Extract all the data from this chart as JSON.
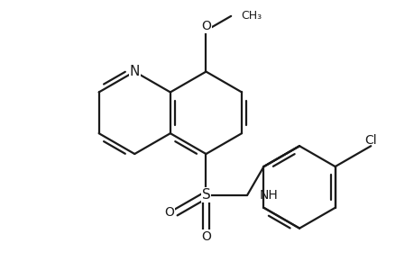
{
  "bg_color": "#ffffff",
  "line_color": "#1a1a1a",
  "line_width": 1.6,
  "font_size": 10,
  "figsize": [
    4.6,
    3.0
  ],
  "dpi": 100,
  "xlim": [
    -2.3,
    2.7
  ],
  "ylim": [
    -1.7,
    1.5
  ]
}
